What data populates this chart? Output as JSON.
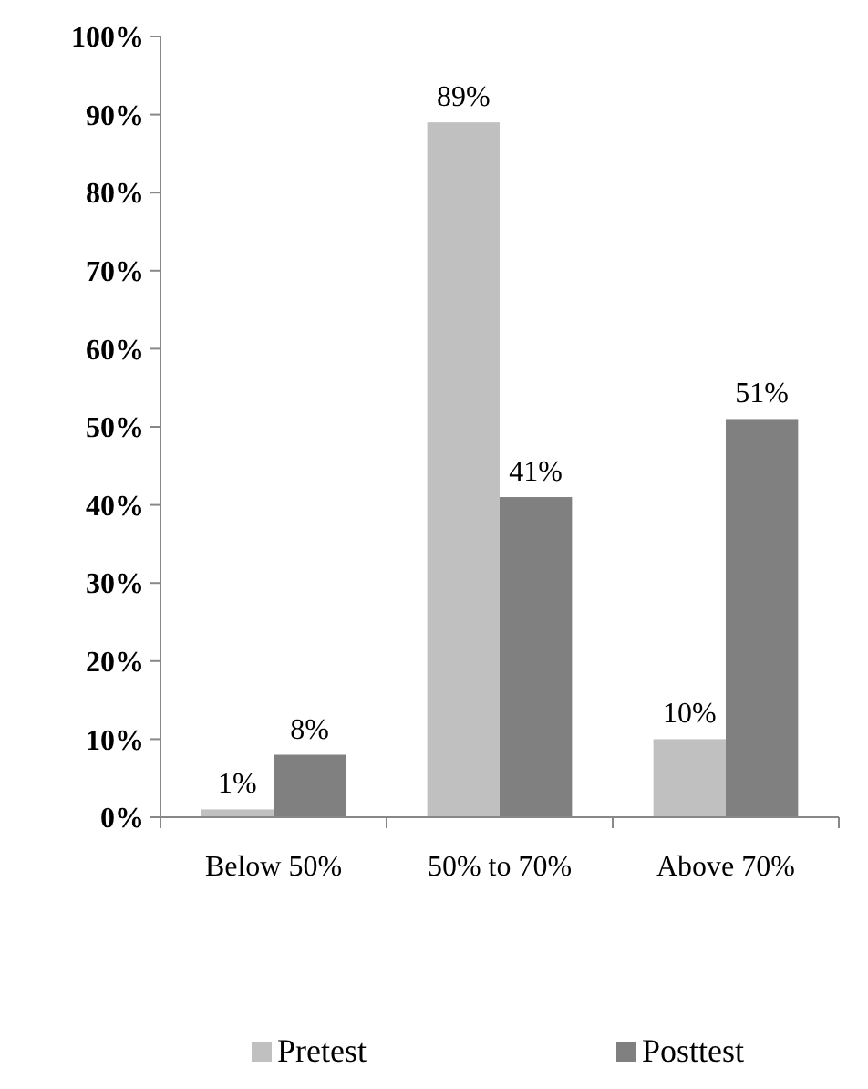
{
  "chart_data": {
    "type": "bar",
    "categories": [
      "Below 50%",
      "50% to 70%",
      "Above 70%"
    ],
    "series": [
      {
        "name": "Pretest",
        "color": "#c0c0c0",
        "values": [
          1,
          89,
          10
        ],
        "value_labels": [
          "1%",
          "89%",
          "10%"
        ]
      },
      {
        "name": "Posttest",
        "color": "#808080",
        "values": [
          8,
          41,
          51
        ],
        "value_labels": [
          "8%",
          "41%",
          "51%"
        ]
      }
    ],
    "ylim": [
      0,
      100
    ],
    "yticks": [
      {
        "value": 0,
        "label": "0%"
      },
      {
        "value": 10,
        "label": "10%"
      },
      {
        "value": 20,
        "label": "20%"
      },
      {
        "value": 30,
        "label": "30%"
      },
      {
        "value": 40,
        "label": "40%"
      },
      {
        "value": 50,
        "label": "50%"
      },
      {
        "value": 60,
        "label": "60%"
      },
      {
        "value": 70,
        "label": "70%"
      },
      {
        "value": 80,
        "label": "80%"
      },
      {
        "value": 90,
        "label": "90%"
      },
      {
        "value": 100,
        "label": "100%"
      }
    ],
    "legend": "bottom"
  }
}
